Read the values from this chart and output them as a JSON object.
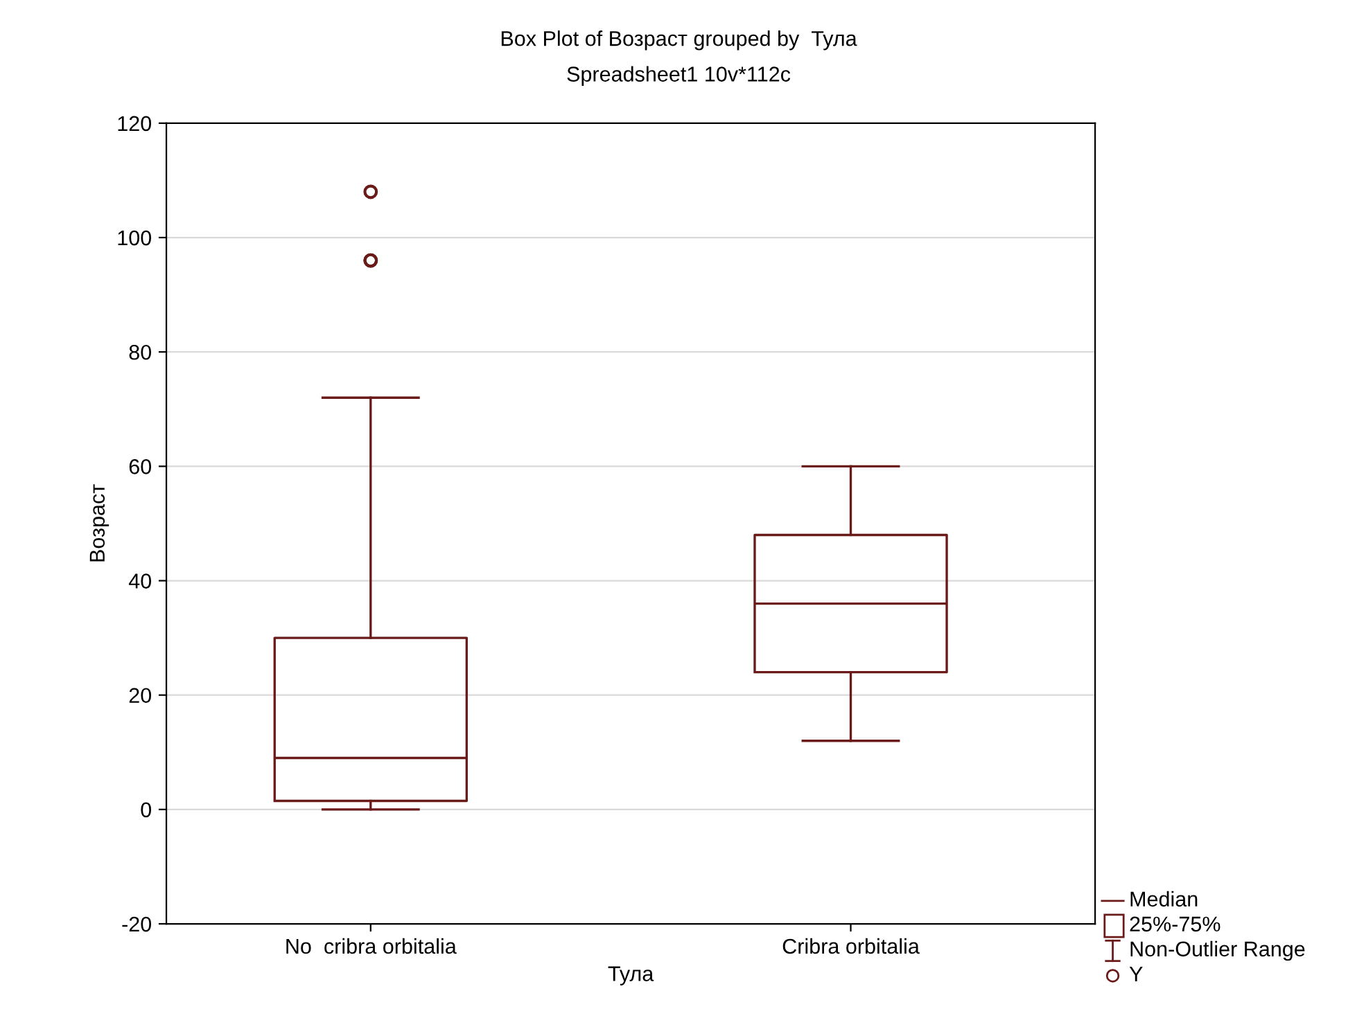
{
  "chart_data": {
    "type": "box",
    "title": "Box Plot of Возраст grouped by  Тула",
    "subtitle": "Spreadsheet1 10v*112c",
    "xlabel": "Тула",
    "ylabel": "Возраст",
    "categories": [
      "No  cribra orbitalia",
      "Cribra orbitalia"
    ],
    "series": [
      {
        "name": "Y",
        "color": "#6b1a1a",
        "boxes": [
          {
            "low": 0,
            "q1": 1.5,
            "median": 9,
            "q3": 30,
            "high": 72,
            "outliers": [
              96,
              96,
              108
            ]
          },
          {
            "low": 12,
            "q1": 24,
            "median": 36,
            "q3": 48,
            "high": 60
          }
        ]
      }
    ],
    "annotations": [
      "Median",
      "25%-75%",
      "Non-Outlier Range"
    ],
    "ylim": [
      -20,
      120
    ],
    "yticks": [
      -20,
      0,
      20,
      40,
      60,
      80,
      100,
      120
    ],
    "grid": "y",
    "legend": "bottom right"
  }
}
